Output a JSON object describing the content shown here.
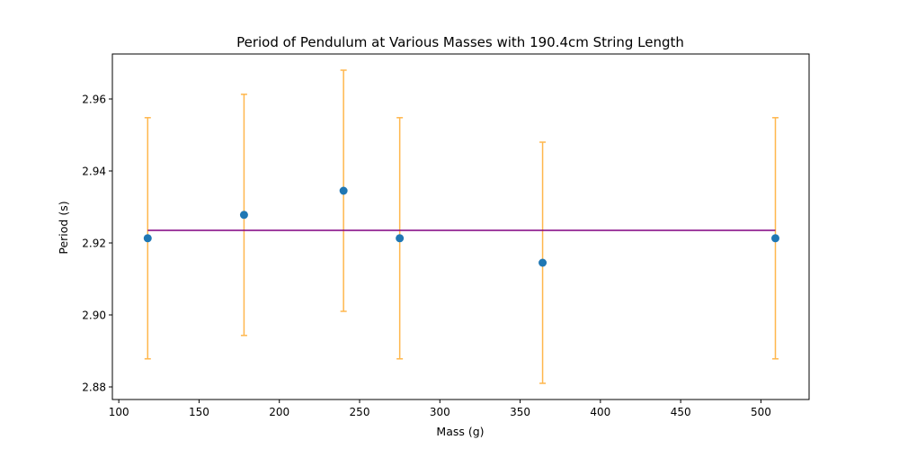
{
  "chart_data": {
    "type": "scatter",
    "title": "Period of Pendulum at Various Masses with 190.4cm String Length",
    "xlabel": "Mass (g)",
    "ylabel": "Period (s)",
    "xlim": [
      96,
      530
    ],
    "ylim": [
      2.8765,
      2.9725
    ],
    "xticks": [
      100,
      150,
      200,
      250,
      300,
      350,
      400,
      450,
      500
    ],
    "yticks": [
      2.88,
      2.9,
      2.92,
      2.94,
      2.96
    ],
    "xtick_labels": [
      "100",
      "150",
      "200",
      "250",
      "300",
      "350",
      "400",
      "450",
      "500"
    ],
    "ytick_labels": [
      "2.88",
      "2.90",
      "2.92",
      "2.94",
      "2.96"
    ],
    "grid": false,
    "series": [
      {
        "points": [
          {
            "x": 118,
            "y": 2.9213,
            "yerr": 0.0335
          },
          {
            "x": 178,
            "y": 2.9278,
            "yerr": 0.0335
          },
          {
            "x": 240,
            "y": 2.9345,
            "yerr": 0.0335
          },
          {
            "x": 275,
            "y": 2.9213,
            "yerr": 0.0335
          },
          {
            "x": 364,
            "y": 2.9145,
            "yerr": 0.0335
          },
          {
            "x": 509,
            "y": 2.9213,
            "yerr": 0.0335
          }
        ]
      }
    ],
    "mean_line": {
      "y": 2.9235,
      "x_start": 118,
      "x_end": 509
    },
    "colors": {
      "points": "#1f77b4",
      "errorbars": "#ffb74d",
      "mean_line": "#800080",
      "axes": "#000000"
    }
  }
}
